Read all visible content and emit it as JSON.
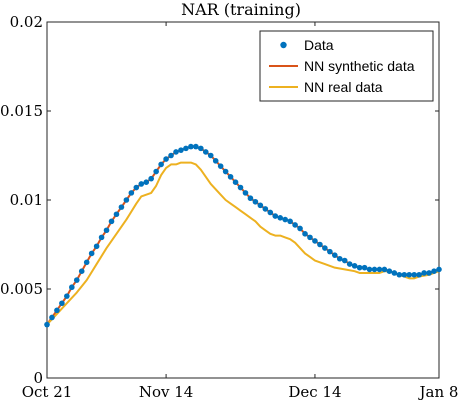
{
  "chart_data": {
    "type": "line",
    "title": "NAR (training)",
    "xlabel": "",
    "ylabel": "",
    "x_ticks": [
      "Oct 21",
      "Nov 14",
      "Dec 14",
      "Jan 8"
    ],
    "x_tick_days": [
      0,
      24,
      54,
      79
    ],
    "y_ticks": [
      "0",
      "0.005",
      "0.01",
      "0.015",
      "0.02"
    ],
    "xlim": [
      "Oct 21",
      "Jan 8"
    ],
    "ylim": [
      0,
      0.02
    ],
    "grid": false,
    "legend_position": "top-right",
    "series": [
      {
        "name": "Data",
        "style": "markers",
        "color": "#0072bd",
        "points": [
          [
            0,
            0.003
          ],
          [
            1,
            0.0034
          ],
          [
            2,
            0.0038
          ],
          [
            3,
            0.0042
          ],
          [
            4,
            0.0046
          ],
          [
            5,
            0.0051
          ],
          [
            6,
            0.0055
          ],
          [
            7,
            0.006
          ],
          [
            8,
            0.0065
          ],
          [
            9,
            0.007
          ],
          [
            10,
            0.0074
          ],
          [
            11,
            0.0079
          ],
          [
            12,
            0.0083
          ],
          [
            13,
            0.0088
          ],
          [
            14,
            0.0092
          ],
          [
            15,
            0.0096
          ],
          [
            16,
            0.01
          ],
          [
            17,
            0.0104
          ],
          [
            18,
            0.0107
          ],
          [
            19,
            0.0109
          ],
          [
            20,
            0.011
          ],
          [
            21,
            0.0112
          ],
          [
            22,
            0.0116
          ],
          [
            23,
            0.012
          ],
          [
            24,
            0.0123
          ],
          [
            25,
            0.0125
          ],
          [
            26,
            0.0127
          ],
          [
            27,
            0.0128
          ],
          [
            28,
            0.0129
          ],
          [
            29,
            0.013
          ],
          [
            30,
            0.013
          ],
          [
            31,
            0.0129
          ],
          [
            32,
            0.0127
          ],
          [
            33,
            0.0125
          ],
          [
            34,
            0.0122
          ],
          [
            35,
            0.0119
          ],
          [
            36,
            0.0116
          ],
          [
            37,
            0.0113
          ],
          [
            38,
            0.011
          ],
          [
            39,
            0.0107
          ],
          [
            40,
            0.0104
          ],
          [
            41,
            0.0101
          ],
          [
            42,
            0.0099
          ],
          [
            43,
            0.0097
          ],
          [
            44,
            0.0095
          ],
          [
            45,
            0.0093
          ],
          [
            46,
            0.0091
          ],
          [
            47,
            0.009
          ],
          [
            48,
            0.0089
          ],
          [
            49,
            0.0088
          ],
          [
            50,
            0.0086
          ],
          [
            51,
            0.0084
          ],
          [
            52,
            0.0081
          ],
          [
            53,
            0.0079
          ],
          [
            54,
            0.0077
          ],
          [
            55,
            0.0075
          ],
          [
            56,
            0.0073
          ],
          [
            57,
            0.0071
          ],
          [
            58,
            0.0069
          ],
          [
            59,
            0.0067
          ],
          [
            60,
            0.0066
          ],
          [
            61,
            0.0064
          ],
          [
            62,
            0.0063
          ],
          [
            63,
            0.0062
          ],
          [
            64,
            0.0062
          ],
          [
            65,
            0.0061
          ],
          [
            66,
            0.0061
          ],
          [
            67,
            0.0061
          ],
          [
            68,
            0.0061
          ],
          [
            69,
            0.006
          ],
          [
            70,
            0.0059
          ],
          [
            71,
            0.0058
          ],
          [
            72,
            0.0058
          ],
          [
            73,
            0.0058
          ],
          [
            74,
            0.0058
          ],
          [
            75,
            0.0058
          ],
          [
            76,
            0.0059
          ],
          [
            77,
            0.0059
          ],
          [
            78,
            0.006
          ],
          [
            79,
            0.0061
          ]
        ]
      },
      {
        "name": "NN synthetic data",
        "style": "line",
        "color": "#d95319",
        "points": [
          [
            0,
            0.003
          ],
          [
            1,
            0.0034
          ],
          [
            2,
            0.0038
          ],
          [
            3,
            0.0042
          ],
          [
            4,
            0.0046
          ],
          [
            5,
            0.0051
          ],
          [
            6,
            0.0055
          ],
          [
            7,
            0.006
          ],
          [
            8,
            0.0065
          ],
          [
            9,
            0.007
          ],
          [
            10,
            0.0074
          ],
          [
            11,
            0.0079
          ],
          [
            12,
            0.0083
          ],
          [
            13,
            0.0088
          ],
          [
            14,
            0.0092
          ],
          [
            15,
            0.0096
          ],
          [
            16,
            0.01
          ],
          [
            17,
            0.0104
          ],
          [
            18,
            0.0107
          ],
          [
            19,
            0.0109
          ],
          [
            20,
            0.011
          ],
          [
            21,
            0.0112
          ],
          [
            22,
            0.0116
          ],
          [
            23,
            0.012
          ],
          [
            24,
            0.0123
          ],
          [
            25,
            0.0125
          ],
          [
            26,
            0.0127
          ],
          [
            27,
            0.0128
          ],
          [
            28,
            0.0129
          ],
          [
            29,
            0.013
          ],
          [
            30,
            0.013
          ],
          [
            31,
            0.0129
          ],
          [
            32,
            0.0127
          ],
          [
            33,
            0.0125
          ],
          [
            34,
            0.0122
          ],
          [
            35,
            0.0119
          ],
          [
            36,
            0.0116
          ],
          [
            37,
            0.0113
          ],
          [
            38,
            0.011
          ],
          [
            39,
            0.0107
          ],
          [
            40,
            0.0104
          ],
          [
            41,
            0.0101
          ],
          [
            42,
            0.0099
          ],
          [
            43,
            0.0097
          ],
          [
            44,
            0.0095
          ],
          [
            45,
            0.0093
          ],
          [
            46,
            0.0091
          ],
          [
            47,
            0.009
          ],
          [
            48,
            0.0089
          ],
          [
            49,
            0.0088
          ],
          [
            50,
            0.0086
          ],
          [
            51,
            0.0084
          ],
          [
            52,
            0.0081
          ],
          [
            53,
            0.0079
          ],
          [
            54,
            0.0077
          ],
          [
            55,
            0.0075
          ],
          [
            56,
            0.0073
          ],
          [
            57,
            0.0071
          ],
          [
            58,
            0.0069
          ],
          [
            59,
            0.0067
          ],
          [
            60,
            0.0066
          ],
          [
            61,
            0.0064
          ],
          [
            62,
            0.0063
          ],
          [
            63,
            0.0062
          ],
          [
            64,
            0.0062
          ],
          [
            65,
            0.0061
          ],
          [
            66,
            0.0061
          ],
          [
            67,
            0.0061
          ],
          [
            68,
            0.0061
          ],
          [
            69,
            0.006
          ],
          [
            70,
            0.0059
          ],
          [
            71,
            0.0058
          ],
          [
            72,
            0.0058
          ],
          [
            73,
            0.0058
          ],
          [
            74,
            0.0058
          ],
          [
            75,
            0.0058
          ],
          [
            76,
            0.0059
          ],
          [
            77,
            0.0059
          ],
          [
            78,
            0.006
          ],
          [
            79,
            0.0061
          ]
        ]
      },
      {
        "name": "NN real data",
        "style": "line",
        "color": "#edb120",
        "points": [
          [
            0,
            0.003
          ],
          [
            2,
            0.0036
          ],
          [
            4,
            0.0042
          ],
          [
            6,
            0.0048
          ],
          [
            8,
            0.0055
          ],
          [
            10,
            0.0064
          ],
          [
            12,
            0.0073
          ],
          [
            14,
            0.0081
          ],
          [
            16,
            0.0089
          ],
          [
            18,
            0.0098
          ],
          [
            19,
            0.0102
          ],
          [
            20,
            0.0103
          ],
          [
            21,
            0.0104
          ],
          [
            22,
            0.0108
          ],
          [
            23,
            0.0114
          ],
          [
            24,
            0.0118
          ],
          [
            25,
            0.012
          ],
          [
            26,
            0.012
          ],
          [
            27,
            0.0121
          ],
          [
            28,
            0.0121
          ],
          [
            29,
            0.0121
          ],
          [
            30,
            0.012
          ],
          [
            31,
            0.0117
          ],
          [
            32,
            0.0113
          ],
          [
            33,
            0.0109
          ],
          [
            34,
            0.0106
          ],
          [
            35,
            0.0103
          ],
          [
            36,
            0.01
          ],
          [
            37,
            0.0098
          ],
          [
            38,
            0.0096
          ],
          [
            39,
            0.0094
          ],
          [
            40,
            0.0092
          ],
          [
            41,
            0.009
          ],
          [
            42,
            0.0088
          ],
          [
            43,
            0.0085
          ],
          [
            44,
            0.0083
          ],
          [
            45,
            0.0081
          ],
          [
            46,
            0.008
          ],
          [
            47,
            0.008
          ],
          [
            48,
            0.0079
          ],
          [
            49,
            0.0078
          ],
          [
            50,
            0.0076
          ],
          [
            51,
            0.0073
          ],
          [
            52,
            0.007
          ],
          [
            53,
            0.0068
          ],
          [
            54,
            0.0066
          ],
          [
            56,
            0.0064
          ],
          [
            58,
            0.0062
          ],
          [
            60,
            0.0061
          ],
          [
            62,
            0.006
          ],
          [
            63,
            0.0059
          ],
          [
            65,
            0.0059
          ],
          [
            67,
            0.0059
          ],
          [
            68,
            0.006
          ],
          [
            69,
            0.006
          ],
          [
            70,
            0.0059
          ],
          [
            71,
            0.0058
          ],
          [
            72,
            0.0057
          ],
          [
            73,
            0.0056
          ],
          [
            74,
            0.0056
          ],
          [
            75,
            0.0057
          ],
          [
            77,
            0.0058
          ],
          [
            78,
            0.0059
          ],
          [
            79,
            0.006
          ]
        ]
      }
    ]
  }
}
